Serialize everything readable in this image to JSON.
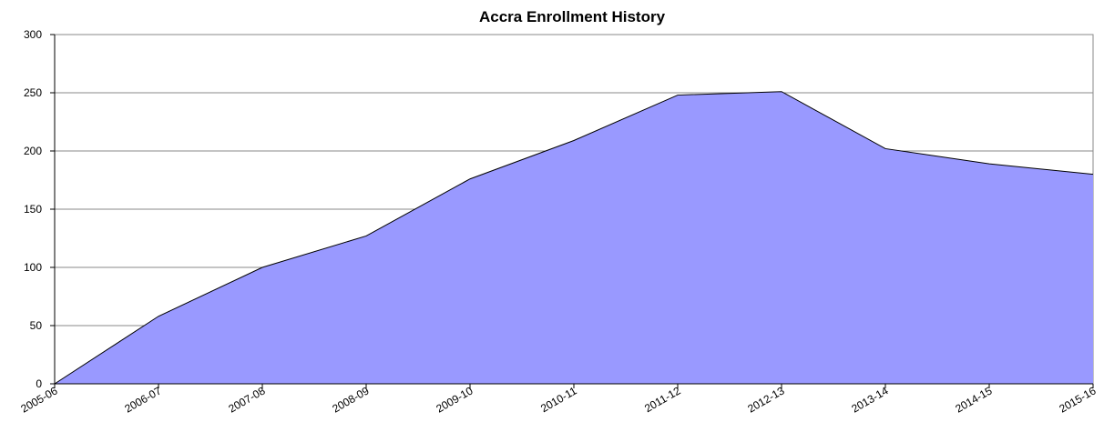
{
  "chart_data": {
    "type": "area",
    "title": "Accra Enrollment History",
    "categories": [
      "2005-06",
      "2006-07",
      "2007-08",
      "2008-09",
      "2009-10",
      "2010-11",
      "2011-12",
      "2012-13",
      "2013-14",
      "2014-15",
      "2015-16"
    ],
    "values": [
      0,
      58,
      100,
      127,
      176,
      209,
      248,
      251,
      202,
      189,
      180
    ],
    "color": "#9999ff",
    "ylim": [
      0,
      300
    ],
    "yticks": [
      0,
      50,
      100,
      150,
      200,
      250,
      300
    ],
    "grid": true
  }
}
